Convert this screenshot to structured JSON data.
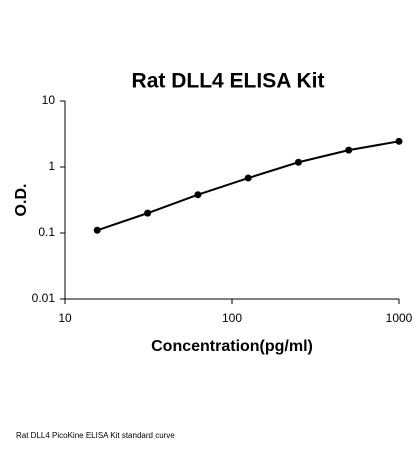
{
  "chart_data": {
    "type": "scatter",
    "title": "Rat DLL4 ELISA Kit",
    "x_label": "Concentration(pg/ml)",
    "y_label": "O.D.",
    "caption": "Rat DLL4 PicoKine ELISA Kit standard curve",
    "x": [
      15.6,
      31.25,
      62.5,
      125,
      250,
      500,
      1000
    ],
    "values": [
      0.11,
      0.2,
      0.38,
      0.68,
      1.18,
      1.8,
      2.45
    ],
    "color": "#000000",
    "xlim": [
      10,
      1000
    ],
    "ylim": [
      0.01,
      10
    ],
    "xticks": [
      10,
      100,
      1000
    ],
    "yticks": [
      0.01,
      0.1,
      1,
      10
    ],
    "xscale": "log",
    "yscale": "log",
    "line": true
  }
}
